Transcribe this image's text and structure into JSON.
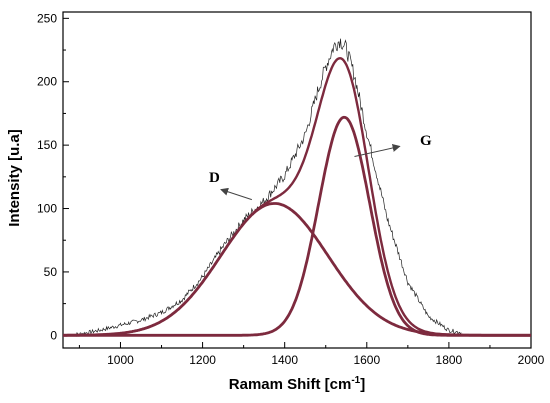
{
  "chart_data": {
    "type": "line",
    "title": "",
    "xlabel": "Ramam Shift [cm",
    "xlabel_sup": "-1",
    "xlabel_close": "]",
    "ylabel": "Intensity [u.a]",
    "xlim": [
      860,
      2000
    ],
    "ylim": [
      -10,
      255
    ],
    "x_ticks": [
      1000,
      1200,
      1400,
      1600,
      1800,
      2000
    ],
    "y_ticks": [
      0,
      50,
      100,
      150,
      200,
      250
    ],
    "x_tick_labels": [
      "1000",
      "1200",
      "1400",
      "1600",
      "1800",
      "2000"
    ],
    "y_tick_labels": [
      "0",
      "50",
      "100",
      "150",
      "200",
      "250"
    ],
    "grid": false,
    "legend": "none",
    "colors": {
      "fit": "#7d2a3e",
      "raw": "#222222",
      "axis": "#000000",
      "arrow": "#444444"
    },
    "series": [
      {
        "name": "D",
        "values_desc": "Gaussian fit component",
        "center": 1375,
        "amplitude": 104,
        "sigma": 130
      },
      {
        "name": "G",
        "center": 1545,
        "amplitude": 172,
        "sigma": 62
      }
    ],
    "raw_points": [
      [
        860,
        0
      ],
      [
        900,
        1
      ],
      [
        950,
        4
      ],
      [
        1000,
        8
      ],
      [
        1050,
        12
      ],
      [
        1100,
        18
      ],
      [
        1150,
        28
      ],
      [
        1200,
        46
      ],
      [
        1250,
        70
      ],
      [
        1300,
        91
      ],
      [
        1350,
        106
      ],
      [
        1400,
        126
      ],
      [
        1450,
        158
      ],
      [
        1480,
        192
      ],
      [
        1500,
        212
      ],
      [
        1520,
        228
      ],
      [
        1535,
        233
      ],
      [
        1550,
        226
      ],
      [
        1570,
        205
      ],
      [
        1600,
        160
      ],
      [
        1650,
        92
      ],
      [
        1700,
        42
      ],
      [
        1750,
        15
      ],
      [
        1800,
        4
      ],
      [
        1850,
        1
      ],
      [
        1900,
        0
      ],
      [
        1950,
        0
      ],
      [
        2000,
        0
      ]
    ],
    "annotations": [
      {
        "text": "D",
        "series": "D"
      },
      {
        "text": "G",
        "series": "G"
      }
    ]
  }
}
